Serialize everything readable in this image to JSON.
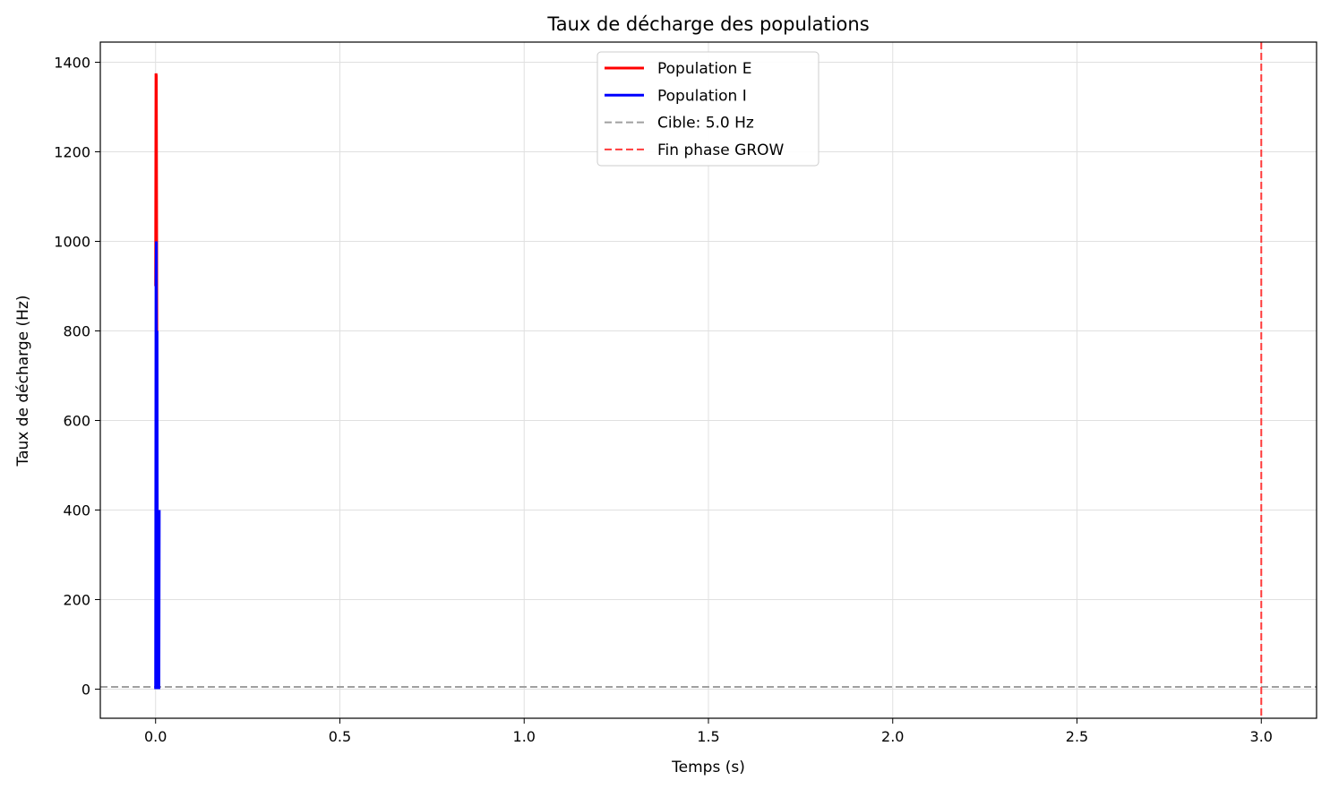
{
  "chart_data": {
    "type": "line",
    "title": "Taux de décharge des populations",
    "xlabel": "Temps (s)",
    "ylabel": "Taux de décharge (Hz)",
    "xlim": [
      -0.15,
      3.15
    ],
    "ylim": [
      -65,
      1445
    ],
    "xticks": [
      0.0,
      0.5,
      1.0,
      1.5,
      2.0,
      2.5,
      3.0
    ],
    "xtick_labels": [
      "0.0",
      "0.5",
      "1.0",
      "1.5",
      "2.0",
      "2.5",
      "3.0"
    ],
    "yticks": [
      0,
      200,
      400,
      600,
      800,
      1000,
      1200,
      1400
    ],
    "ytick_labels": [
      "0",
      "200",
      "400",
      "600",
      "800",
      "1000",
      "1200",
      "1400"
    ],
    "grid": true,
    "legend_position": "top-center",
    "series": [
      {
        "name": "Population E",
        "color": "#ff0000",
        "style": "solid",
        "x": [
          0.0,
          0.001,
          0.002,
          0.003,
          0.004,
          0.005,
          0.006
        ],
        "y": [
          900,
          1375,
          1370,
          1000,
          600,
          200,
          0
        ]
      },
      {
        "name": "Population I",
        "color": "#0000ff",
        "style": "solid",
        "x": [
          0.0,
          0.001,
          0.002,
          0.003,
          0.004,
          0.005,
          0.006,
          0.007,
          0.008,
          0.009,
          0.01
        ],
        "y": [
          0,
          900,
          1000,
          0,
          800,
          0,
          400,
          0,
          400,
          0,
          400
        ]
      }
    ],
    "reference_lines": [
      {
        "name": "Cible: 5.0 Hz",
        "orientation": "horizontal",
        "value": 5.0,
        "color": "#a0a0a0",
        "style": "dashed"
      },
      {
        "name": "Fin phase GROW",
        "orientation": "vertical",
        "value": 3.0,
        "color": "#ff3b3b",
        "style": "dashed"
      }
    ]
  }
}
